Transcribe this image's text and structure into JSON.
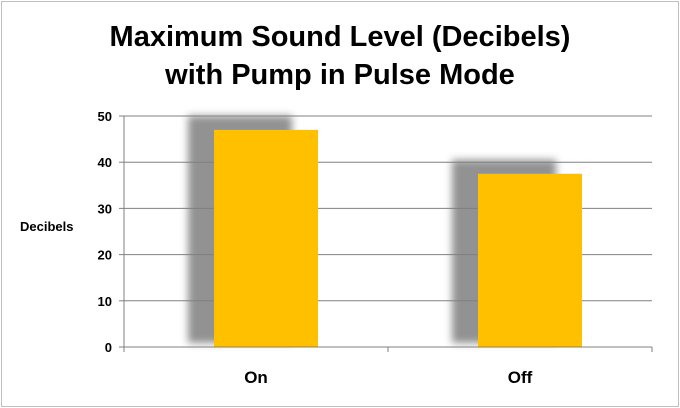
{
  "chart_data": {
    "type": "bar",
    "title_lines": [
      "Maximum Sound Level (Decibels)",
      "with Pump in Pulse Mode"
    ],
    "xlabel": "",
    "ylabel": "Decibels",
    "categories": [
      "On",
      "Off"
    ],
    "series": [
      {
        "values": [
          47,
          37.5
        ]
      }
    ],
    "ylim": [
      0,
      50
    ],
    "yticks": [
      0,
      10,
      20,
      30,
      40,
      50
    ],
    "grid": true,
    "colors": {
      "bar": "#ffc000",
      "bar_shadow": "#7f7f7f",
      "gridline": "#808080",
      "grid_glow": "#f08080"
    }
  }
}
